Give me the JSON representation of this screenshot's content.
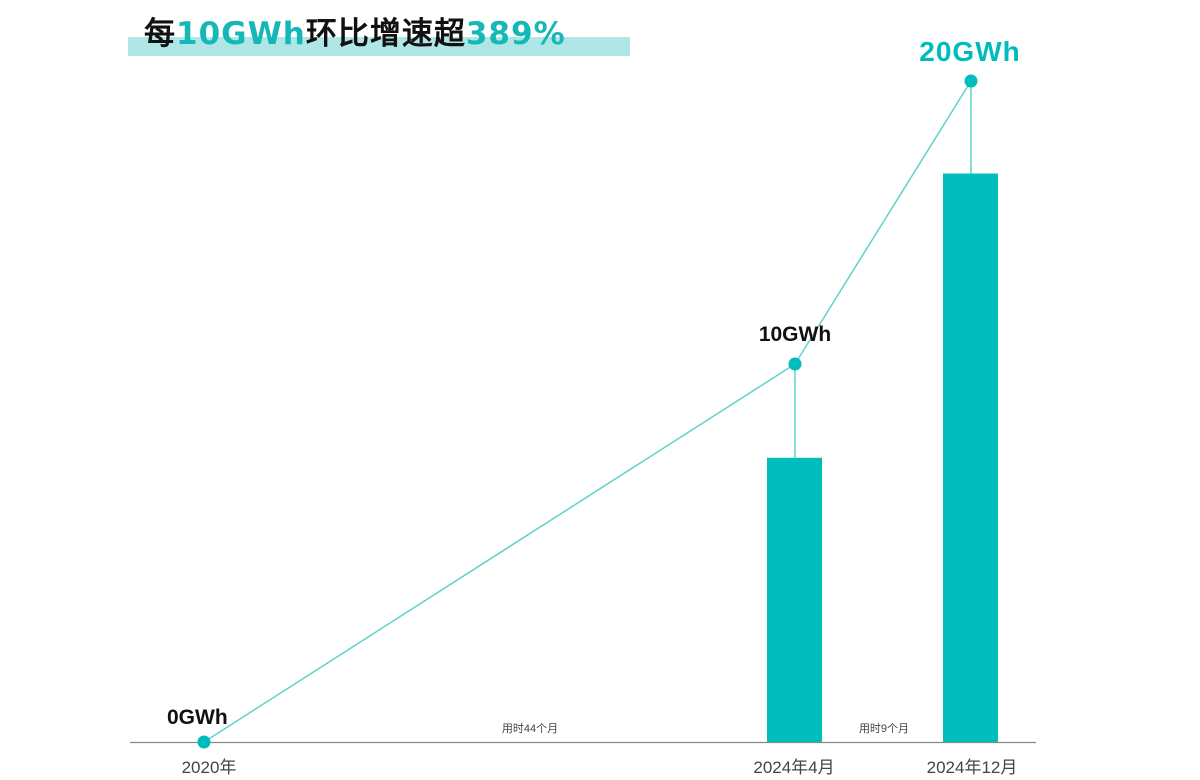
{
  "title": {
    "prefix": "每",
    "highlight1": "10GWh",
    "middle": "环比增速超",
    "highlight2": "389%"
  },
  "colors": {
    "accent": "#00bcbc",
    "line": "#5ed3c9",
    "highlight_band": "#b0e6e6",
    "axis": "#888888"
  },
  "chart_data": {
    "type": "bar+line",
    "categories": [
      "2020年",
      "2024年4月",
      "2024年12月"
    ],
    "line_values": [
      0,
      10,
      20
    ],
    "line_labels": [
      "0GWh",
      "10GWh",
      "20GWh"
    ],
    "bar_values": [
      null,
      8.6,
      17.2
    ],
    "annotations": [
      "用时44个月",
      "用时9个月"
    ],
    "xlabel": "",
    "ylabel": "",
    "ylim": [
      0,
      20
    ],
    "grid": false,
    "legend": "none"
  }
}
